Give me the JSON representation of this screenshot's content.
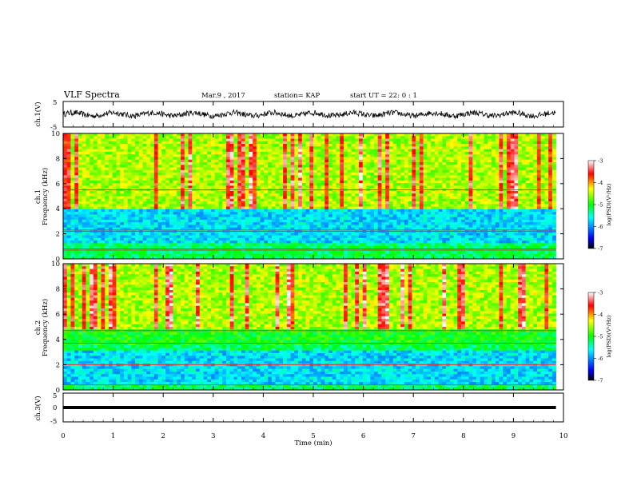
{
  "header": {
    "title": "VLF Spectra",
    "date": "Mar.9 , 2017",
    "station": "station= KAP",
    "start_ut": "start UT = 22: 0 : 1"
  },
  "chart_data": [
    {
      "type": "line",
      "id": "ch1_waveform",
      "ylabel": "ch.1(V)",
      "ylim": [
        -5,
        5
      ],
      "yticks": [
        "5",
        "-5"
      ],
      "xlim": [
        0,
        10
      ],
      "description_series": "noisy waveform oscillating roughly between -1.5 and 1.5 V with slow ~0.8 min modulation",
      "series": [
        {
          "values_summary": {
            "min": -1.8,
            "max": 1.8,
            "period_min": 0.8
          }
        }
      ]
    },
    {
      "type": "heatmap",
      "id": "ch1_spectrogram",
      "ylabel_top": "ch.1",
      "ylabel": "Frequency (kHz)",
      "ylim": [
        0,
        10
      ],
      "yticks": [
        "0",
        "2",
        "4",
        "6",
        "8",
        "10"
      ],
      "xlim": [
        0,
        10
      ],
      "colorbar": {
        "label": "log(PSD)(V²/Hz)",
        "ticks": [
          "-3",
          "-4",
          "-5",
          "-6",
          "-7"
        ],
        "range": [
          -7,
          -3
        ]
      },
      "bands": [
        {
          "fmin": 4.0,
          "fmax": 10.0,
          "level": "high (yellow/red streaks)"
        },
        {
          "fmin": 2.5,
          "fmax": 4.0,
          "level": "low (blue/cyan)"
        },
        {
          "fmin": 1.2,
          "fmax": 2.5,
          "level": "low (blue)"
        },
        {
          "fmin": 0.0,
          "fmax": 1.2,
          "level": "mixed (green/cyan with red lines)"
        }
      ],
      "lines_khz": [
        5.5,
        2.3,
        2.2,
        0.8,
        0.7
      ]
    },
    {
      "type": "heatmap",
      "id": "ch2_spectrogram",
      "ylabel_top": "ch.2",
      "ylabel": "Frequency (kHz)",
      "ylim": [
        0,
        10
      ],
      "yticks": [
        "0",
        "2",
        "4",
        "6",
        "8",
        "10"
      ],
      "xlim": [
        0,
        10
      ],
      "colorbar": {
        "label": "log(PSD)(V²/Hz)",
        "ticks": [
          "-3",
          "-4",
          "-5",
          "-6",
          "-7"
        ],
        "range": [
          -7,
          -3
        ]
      },
      "bands": [
        {
          "fmin": 4.8,
          "fmax": 10.0,
          "level": "high (yellow/red streaks)"
        },
        {
          "fmin": 3.6,
          "fmax": 4.8,
          "level": "medium (green)"
        },
        {
          "fmin": 0.5,
          "fmax": 3.2,
          "level": "low (blue/cyan)"
        },
        {
          "fmin": 0.0,
          "fmax": 0.5,
          "level": "mixed (green with red lines)"
        }
      ],
      "lines_khz": [
        4.7,
        3.7,
        2.0,
        0.4
      ]
    },
    {
      "type": "line",
      "id": "ch3_waveform",
      "ylabel": "ch.3(V)",
      "ylim": [
        -5,
        5
      ],
      "yticks": [
        "5",
        "0",
        "-5"
      ],
      "xlim": [
        0,
        10
      ],
      "series": [
        {
          "values_summary": {
            "constant_level_V": 0.0,
            "thickness_note": "thick flat line"
          }
        }
      ]
    }
  ],
  "xaxis": {
    "label": "Time (min)",
    "ticks": [
      "0",
      "1",
      "2",
      "3",
      "4",
      "5",
      "6",
      "7",
      "8",
      "9",
      "10"
    ],
    "data_end_min": 9.85
  },
  "colors": {
    "axis": "#000000",
    "colormap": [
      "#000000",
      "#0000ff",
      "#00ffff",
      "#00ff00",
      "#ffff00",
      "#ff0000",
      "#ffffff"
    ]
  }
}
